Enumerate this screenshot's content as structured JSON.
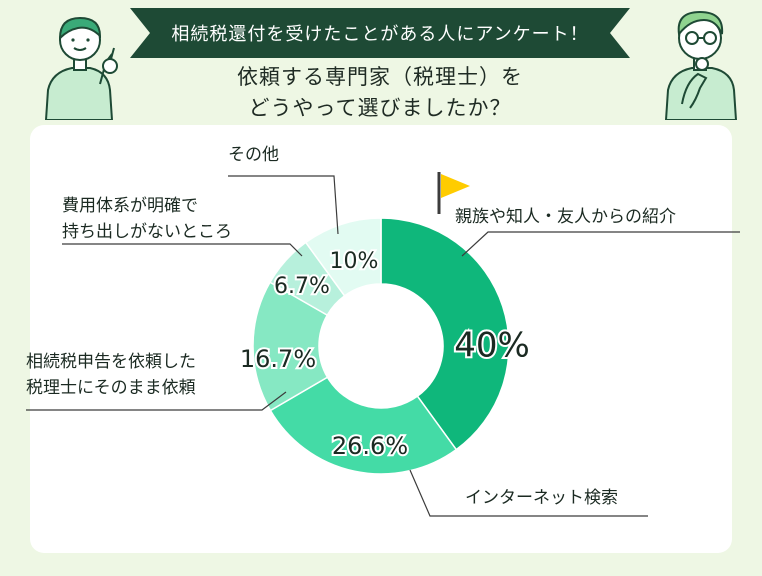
{
  "header": {
    "banner": "相続税還付を受けたことがある人にアンケート！",
    "question_line1": "依頼する専門家（税理士）を",
    "question_line2": "どうやって選びましたか？"
  },
  "chart_data": {
    "type": "pie",
    "donut": true,
    "slices": [
      {
        "label": "親族や知人・友人からの紹介",
        "value": 40,
        "display": "40%",
        "color": "#0fb77b",
        "label_color": "#1b2a22"
      },
      {
        "label": "インターネット検索",
        "value": 26.6,
        "display": "26.6%",
        "color": "#44dba6",
        "label_color": "#1b2a22"
      },
      {
        "label": "相続税申告を依頼した税理士にそのまま依頼",
        "value": 16.7,
        "display": "16.7%",
        "color": "#86e8c3",
        "label_color": "#1b2a22"
      },
      {
        "label": "費用体系が明確で持ち出しがないところ",
        "value": 6.7,
        "display": "6.7%",
        "color": "#b7f0dc",
        "label_color": "#1b2a22"
      },
      {
        "label": "その他",
        "value": 10,
        "display": "10%",
        "color": "#e2fbf2",
        "label_color": "#1b2a22"
      }
    ],
    "label_lines": {
      "s0": [
        "親族や知人・友人からの紹介"
      ],
      "s1": [
        "インターネット検索"
      ],
      "s2": [
        "相続税申告を依頼した",
        "税理士にそのまま依頼"
      ],
      "s3": [
        "費用体系が明確で",
        "持ち出しがないところ"
      ],
      "s4": [
        "その他"
      ]
    },
    "highlight": "flag-icon"
  }
}
